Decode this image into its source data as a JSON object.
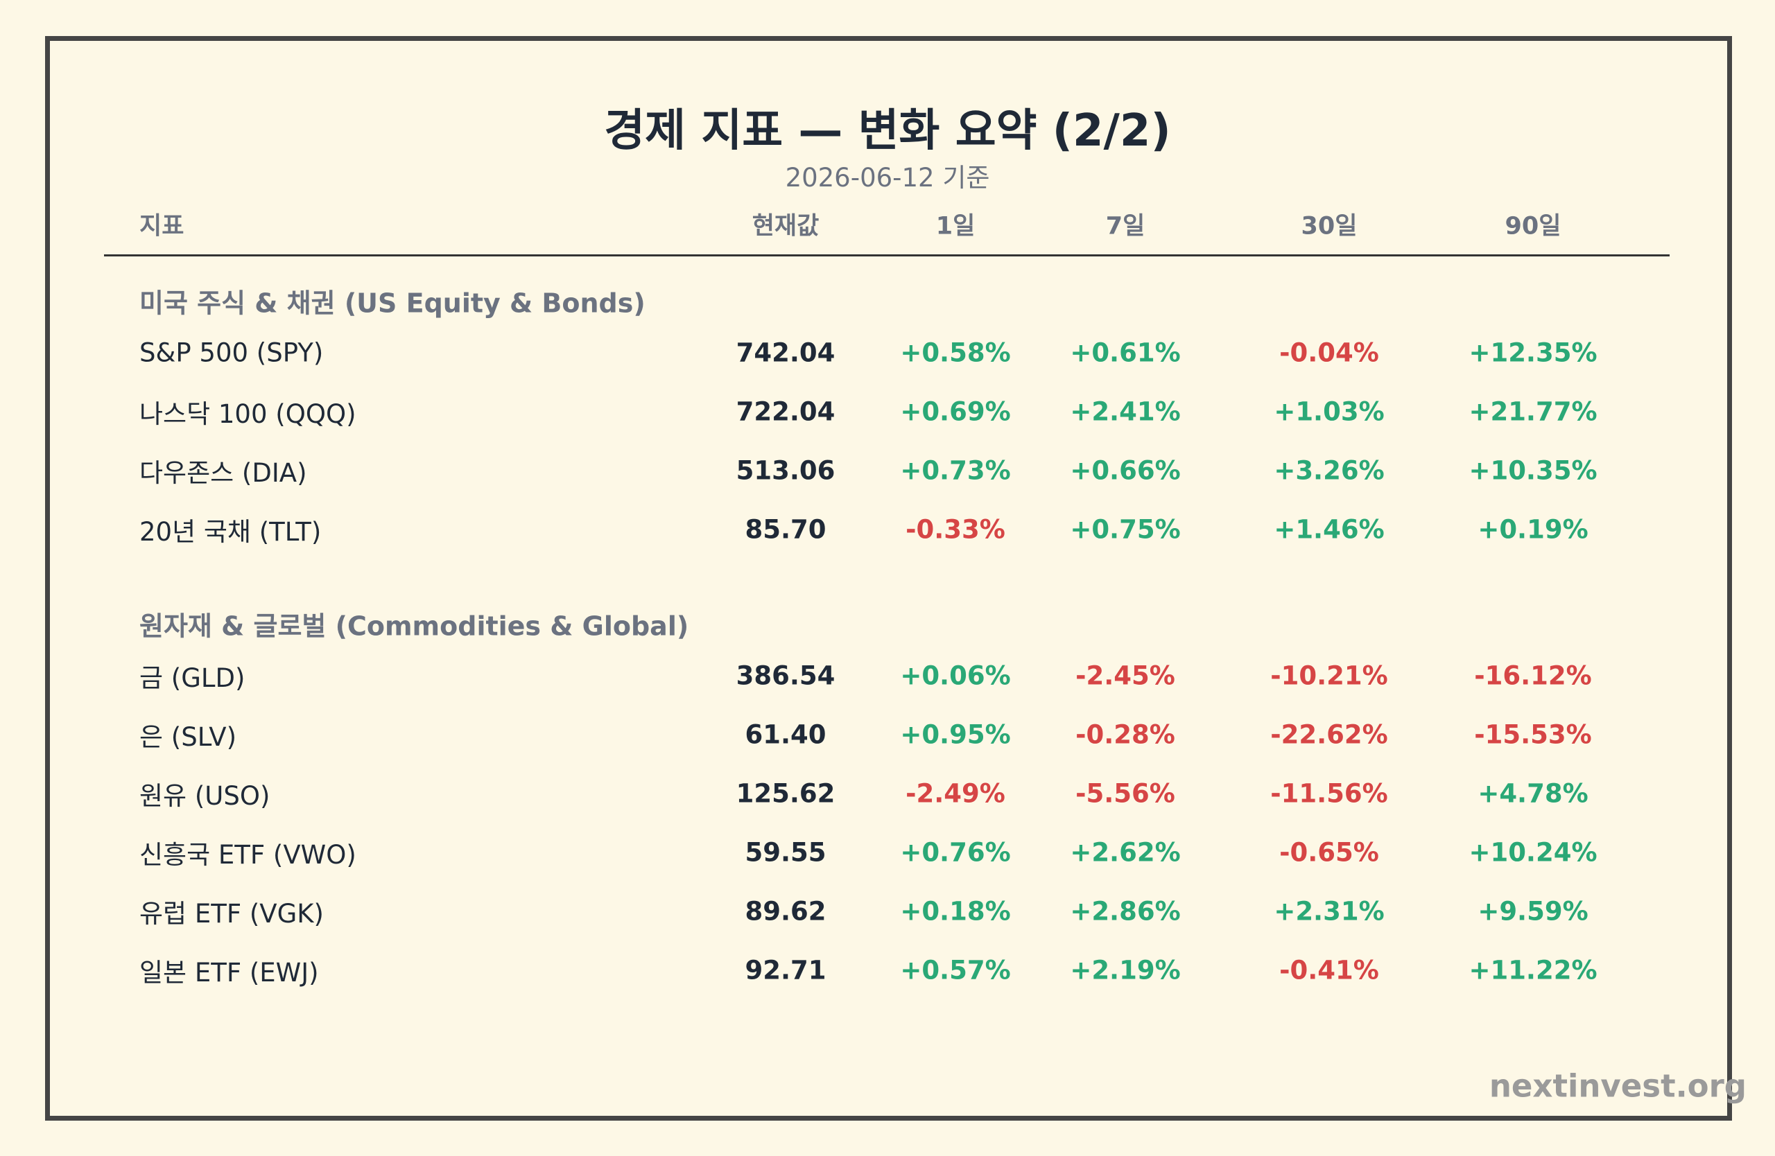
{
  "header": {
    "title": "경제 지표 — 변화 요약 (2/2)",
    "subtitle": "2026-06-12 기준"
  },
  "table": {
    "columns": [
      "지표",
      "현재값",
      "1일",
      "7일",
      "30일",
      "90일"
    ],
    "sections": [
      {
        "title": "미국 주식 & 채권 (US Equity & Bonds)",
        "rows": [
          [
            "S&P 500 (SPY)",
            "742.04",
            "+0.58%",
            "+0.61%",
            "-0.04%",
            "+12.35%"
          ],
          [
            "나스닥 100 (QQQ)",
            "722.04",
            "+0.69%",
            "+2.41%",
            "+1.03%",
            "+21.77%"
          ],
          [
            "다우존스 (DIA)",
            "513.06",
            "+0.73%",
            "+0.66%",
            "+3.26%",
            "+10.35%"
          ],
          [
            "20년 국채 (TLT)",
            "85.70",
            "-0.33%",
            "+0.75%",
            "+1.46%",
            "+0.19%"
          ]
        ]
      },
      {
        "title": "원자재 & 글로벌 (Commodities & Global)",
        "rows": [
          [
            "금 (GLD)",
            "386.54",
            "+0.06%",
            "-2.45%",
            "-10.21%",
            "-16.12%"
          ],
          [
            "은 (SLV)",
            "61.40",
            "+0.95%",
            "-0.28%",
            "-22.62%",
            "-15.53%"
          ],
          [
            "원유 (USO)",
            "125.62",
            "-2.49%",
            "-5.56%",
            "-11.56%",
            "+4.78%"
          ],
          [
            "신흥국 ETF (VWO)",
            "59.55",
            "+0.76%",
            "+2.62%",
            "-0.65%",
            "+10.24%"
          ],
          [
            "유럽 ETF (VGK)",
            "89.62",
            "+0.18%",
            "+2.86%",
            "+2.31%",
            "+9.59%"
          ],
          [
            "일본 ETF (EWJ)",
            "92.71",
            "+0.57%",
            "+2.19%",
            "-0.41%",
            "+11.22%"
          ]
        ]
      }
    ]
  },
  "footer": {
    "site": "nextinvest.org"
  }
}
